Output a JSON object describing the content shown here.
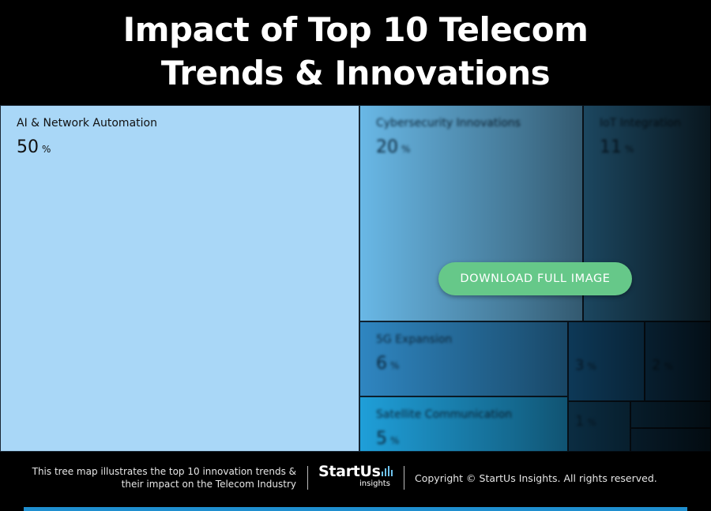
{
  "header": {
    "title_line1": "Impact of Top 10 Telecom",
    "title_line2": "Trends & Innovations"
  },
  "chart_data": {
    "type": "treemap",
    "title": "Impact of Top 10 Telecom Trends & Innovations",
    "unit": "%",
    "items": [
      {
        "name": "AI & Network Automation",
        "value": 50,
        "color": "#a9d7f7",
        "blurred": false
      },
      {
        "name": "Cybersecurity Innovations",
        "value": 20,
        "color": "#69b8e6",
        "blurred": true
      },
      {
        "name": "IoT Integration",
        "value": 11,
        "color": "#3a93c7",
        "blurred": true
      },
      {
        "name": "5G Expansion",
        "value": 6,
        "color": "#2f86c1",
        "blurred": true
      },
      {
        "name": "Satellite Communication",
        "value": 5,
        "color": "#1f9fd9",
        "blurred": true
      },
      {
        "name": "",
        "value": 3,
        "color": "#1a6da8",
        "blurred": true
      },
      {
        "name": "",
        "value": 2,
        "color": "#175f93",
        "blurred": true
      },
      {
        "name": "",
        "value": 1,
        "color": "#15567f",
        "blurred": true
      },
      {
        "name": "",
        "value": null,
        "color": "#145077",
        "blurred": true
      },
      {
        "name": "",
        "value": null,
        "color": "#134a70",
        "blurred": true
      }
    ]
  },
  "cta": {
    "label": "DOWNLOAD FULL IMAGE"
  },
  "footer": {
    "description_line1": "This tree map illustrates the top 10 innovation trends &",
    "description_line2": "their impact on the Telecom Industry",
    "logo_text": "StartUs",
    "logo_subtext": "insights",
    "copyright": "Copyright © StartUs Insights. All rights reserved."
  },
  "colors": {
    "header_bg": "#000000",
    "cta_green": "#66c889",
    "accent_blue": "#1f8fcf"
  }
}
